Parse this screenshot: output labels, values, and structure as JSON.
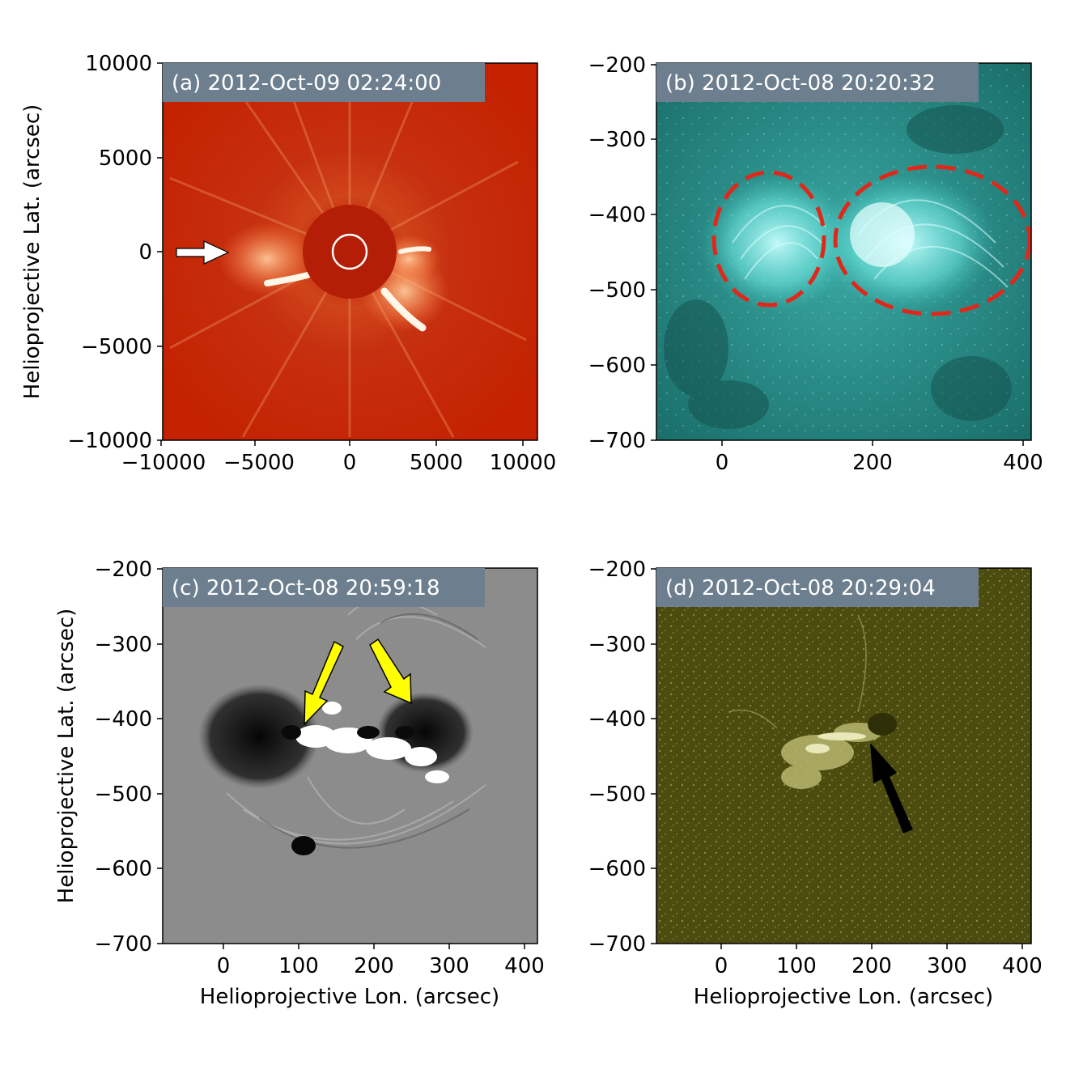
{
  "panels": [
    {
      "id": "a",
      "label": "(a) 2012-Oct-09 02:24:00",
      "ylabel": "Helioprojective Lat. (arcsec)",
      "xlabel": "",
      "x_ticks": [
        "−10000",
        "−5000",
        "0",
        "5000",
        "10000"
      ],
      "y_ticks": [
        "10000",
        "5000",
        "0",
        "−5000",
        "−10000"
      ],
      "image_color": "#c22000",
      "annotation": "white arrow pointing at CME front"
    },
    {
      "id": "b",
      "label": "(b) 2012-Oct-08 20:20:32",
      "ylabel": "",
      "xlabel": "",
      "x_ticks": [
        "0",
        "200",
        "400"
      ],
      "y_ticks": [
        "−200",
        "−300",
        "−400",
        "−500",
        "−600",
        "−700"
      ],
      "image_color": "#1a7f7a",
      "annotation": "two red dashed ellipses"
    },
    {
      "id": "c",
      "label": "(c) 2012-Oct-08 20:59:18",
      "ylabel": "Helioprojective Lat. (arcsec)",
      "xlabel": "Helioprojective Lon. (arcsec)",
      "x_ticks": [
        "0",
        "100",
        "200",
        "300",
        "400"
      ],
      "y_ticks": [
        "−200",
        "−300",
        "−400",
        "−500",
        "−600",
        "−700"
      ],
      "image_color": "#8a8a8a",
      "annotation": "two yellow arrows"
    },
    {
      "id": "d",
      "label": "(d) 2012-Oct-08 20:29:04",
      "ylabel": "",
      "xlabel": "Helioprojective Lon. (arcsec)",
      "x_ticks": [
        "0",
        "100",
        "200",
        "300",
        "400"
      ],
      "y_ticks": [
        "−200",
        "−300",
        "−400",
        "−500",
        "−600",
        "−700"
      ],
      "image_color": "#4f4f0f",
      "annotation": "black arrow"
    }
  ],
  "colors": {
    "label_box": "#6d7f8f",
    "label_text": "#ffffff",
    "ellipse": "#e0281a",
    "yellow_arrow": "#ffff00",
    "black_arrow": "#000000",
    "white_arrow": "#ffffff"
  }
}
